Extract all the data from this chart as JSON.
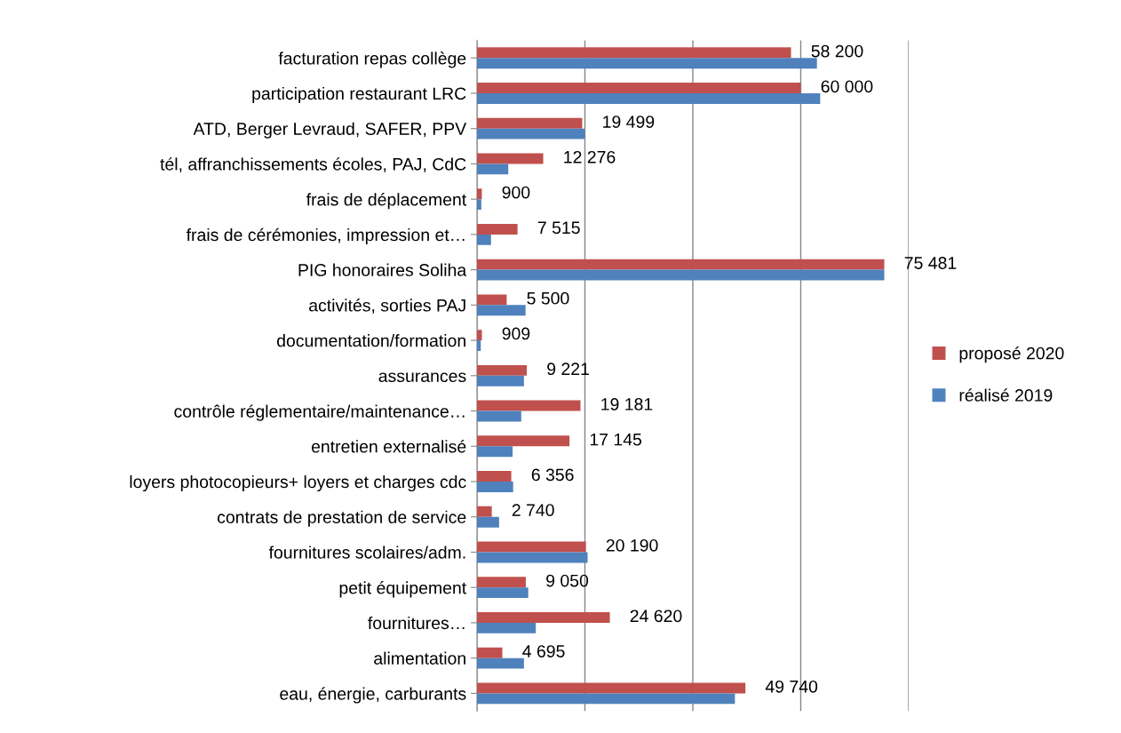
{
  "chart_data": {
    "type": "bar",
    "orientation": "horizontal",
    "categories": [
      "facturation repas collège",
      "participation restaurant LRC",
      "ATD, Berger Levraud, SAFER, PPV",
      "tél, affranchissements écoles, PAJ, CdC",
      "frais de déplacement",
      "frais de cérémonies, impression et…",
      "PIG honoraires Soliha",
      "activités, sorties PAJ",
      "documentation/formation",
      "assurances",
      "contrôle réglementaire/maintenance…",
      "entretien externalisé",
      "loyers photocopieurs+ loyers et charges cdc",
      "contrats de prestation de service",
      "fournitures scolaires/adm.",
      "petit équipement",
      "fournitures…",
      "alimentation",
      "eau, énergie, carburants"
    ],
    "series": [
      {
        "name": "proposé 2020",
        "color": "#c0504d",
        "values": [
          58200,
          60000,
          19499,
          12276,
          900,
          7515,
          75481,
          5500,
          909,
          9221,
          19181,
          17145,
          6356,
          2740,
          20190,
          9050,
          24620,
          4695,
          49740
        ],
        "value_labels": [
          "58 200",
          "60 000",
          "19 499",
          "12 276",
          "900",
          "7 515",
          "75 481",
          "5 500",
          "909",
          "9 221",
          "19 181",
          "17 145",
          "6 356",
          "2 740",
          "20 190",
          "9 050",
          "24 620",
          "4 695",
          "49 740"
        ]
      },
      {
        "name": "réalisé 2019",
        "color": "#4f81bd",
        "values": [
          63000,
          63600,
          20000,
          5800,
          800,
          2600,
          75481,
          9000,
          700,
          8700,
          8200,
          6600,
          6700,
          4100,
          20500,
          9500,
          10900,
          8700,
          47800
        ]
      }
    ],
    "xlim": [
      0,
      80000
    ],
    "xticks": [
      {
        "value": 0,
        "label": null
      },
      {
        "value": 20000,
        "label": null
      },
      {
        "value": 40000,
        "label": null
      },
      {
        "value": 60000,
        "label": null
      },
      {
        "value": 80000,
        "label": null
      }
    ],
    "tick_labels": "y",
    "grid": "x",
    "legend": "right"
  }
}
